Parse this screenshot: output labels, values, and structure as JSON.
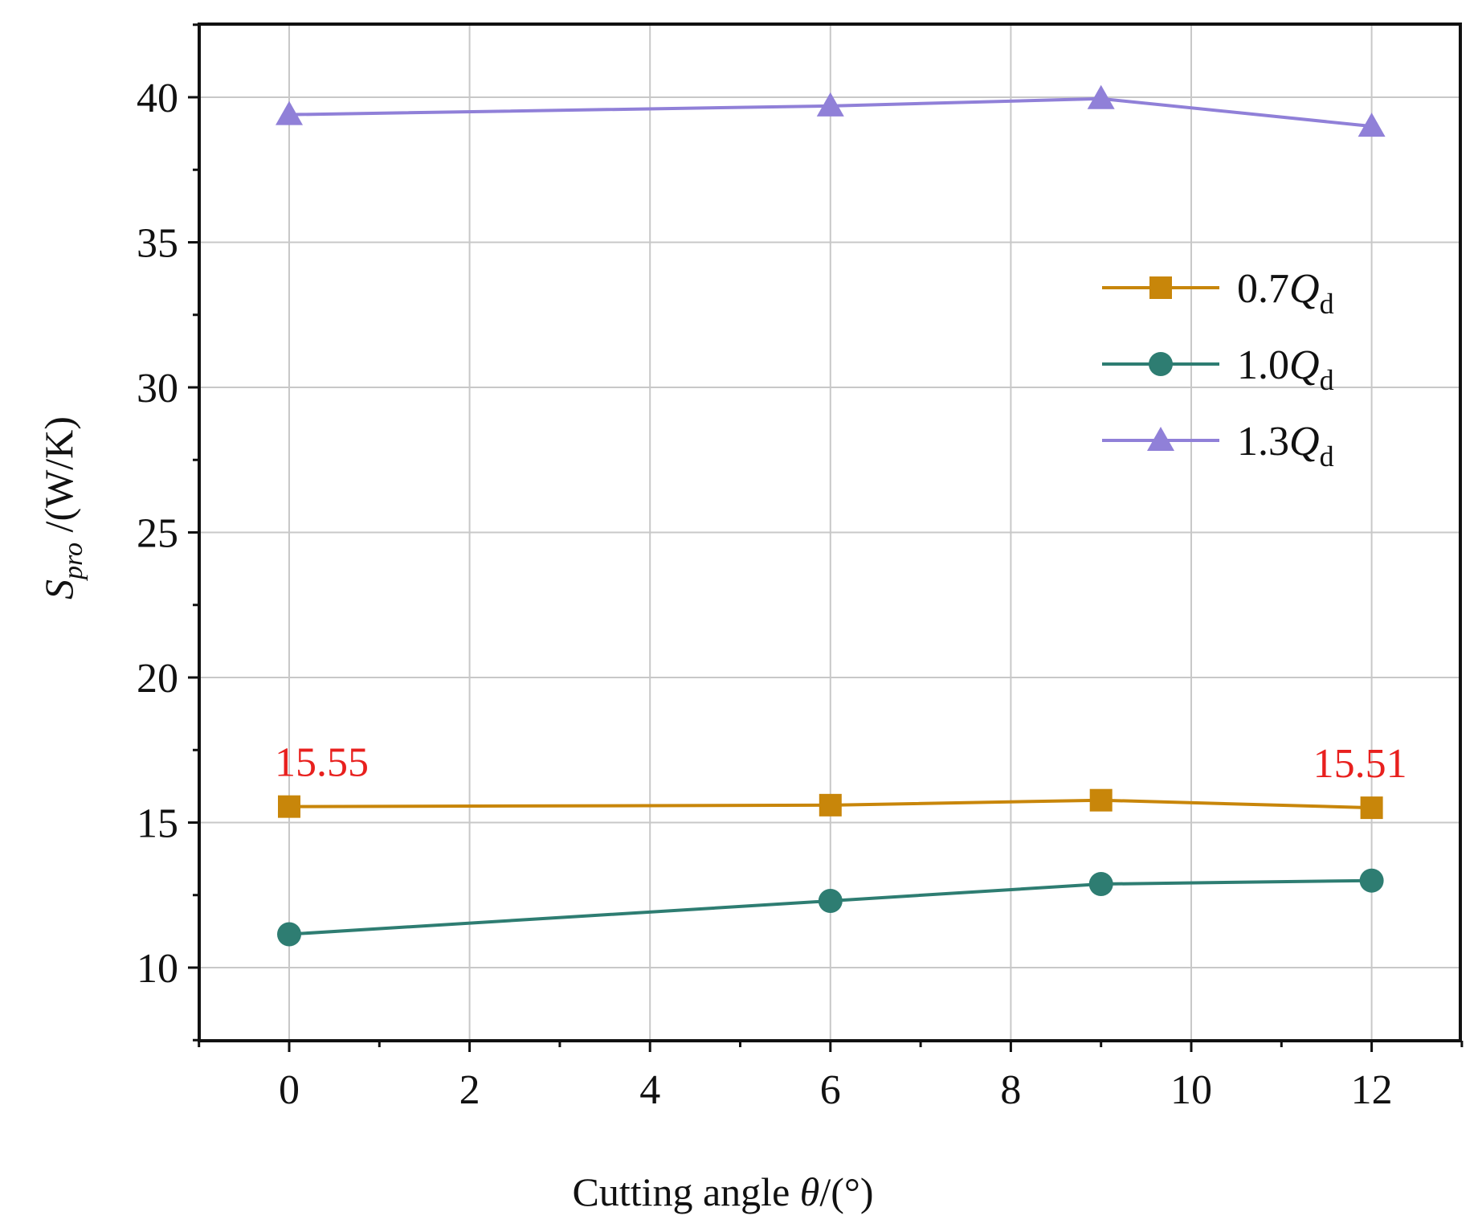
{
  "chart_data": {
    "type": "line",
    "title": "",
    "xlabel": "Cutting angle θ/(°)",
    "xlabel_prefix": "Cutting angle ",
    "xlabel_symbol": "θ",
    "xlabel_suffix": "/(°)",
    "ylabel": "Spro /(W/K)",
    "ylabel_symbol": "S",
    "ylabel_subscript": "pro",
    "ylabel_unit": " /(W/K)",
    "xlim": [
      -1,
      13
    ],
    "ylim": [
      7.5,
      42.5
    ],
    "xticks": [
      0,
      2,
      4,
      6,
      8,
      10,
      12
    ],
    "yticks": [
      10,
      15,
      20,
      25,
      30,
      35,
      40
    ],
    "grid": true,
    "legend_position": "top-right",
    "x": [
      0,
      6,
      9,
      12
    ],
    "series": [
      {
        "name": "0.7Qd",
        "label_number": "0.7",
        "label_symbol": "Q",
        "label_subscript": "d",
        "marker": "square",
        "color": "#C8860A",
        "values": [
          15.55,
          15.6,
          15.77,
          15.51
        ]
      },
      {
        "name": "1.0Qd",
        "label_number": "1.0",
        "label_symbol": "Q",
        "label_subscript": "d",
        "marker": "circle",
        "color": "#2E7D72",
        "values": [
          11.15,
          12.3,
          12.88,
          13.0
        ]
      },
      {
        "name": "1.3Qd",
        "label_number": "1.3",
        "label_symbol": "Q",
        "label_subscript": "d",
        "marker": "triangle",
        "color": "#9080D8",
        "values": [
          39.4,
          39.7,
          39.95,
          39.0
        ]
      }
    ],
    "annotations": [
      {
        "text": "15.55",
        "x": 0,
        "y": 15.55,
        "color": "#E8201E"
      },
      {
        "text": "15.51",
        "x": 12,
        "y": 15.51,
        "color": "#E8201E"
      }
    ]
  }
}
